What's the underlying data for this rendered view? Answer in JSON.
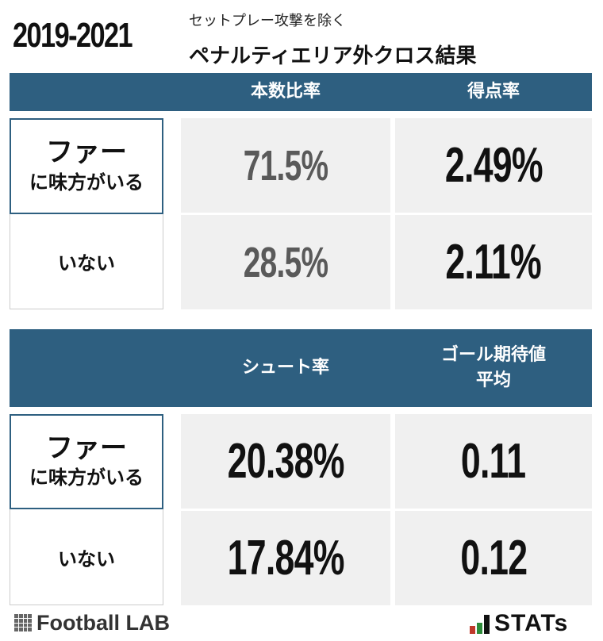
{
  "header": {
    "year": "2019-2021",
    "subtitle": "セットプレー攻撃を除く",
    "title": "ペナルティエリア外クロス結果"
  },
  "table1": {
    "col1_label": "本数比率",
    "col2_label": "得点率",
    "row_far_big": "ファー",
    "row_far_small": "に味方がいる",
    "row_none": "いない",
    "far_ratio": "71.5%",
    "far_score_rate": "2.49%",
    "none_ratio": "28.5%",
    "none_score_rate": "2.11%"
  },
  "table2": {
    "col1_label": "シュート率",
    "col2_label_line1": "ゴール期待値",
    "col2_label_line2": "平均",
    "row_far_big": "ファー",
    "row_far_small": "に味方がいる",
    "row_none": "いない",
    "far_shot_rate": "20.38%",
    "far_xg": "0.11",
    "none_shot_rate": "17.84%",
    "none_xg": "0.12"
  },
  "footer": {
    "left_logo": "Football LAB",
    "right_logo": "STATs"
  },
  "colors": {
    "header_band": "#2e5f80",
    "cell_bg": "#f0f0f0",
    "gray_value": "#5a5a5a",
    "black_value": "#111111"
  }
}
